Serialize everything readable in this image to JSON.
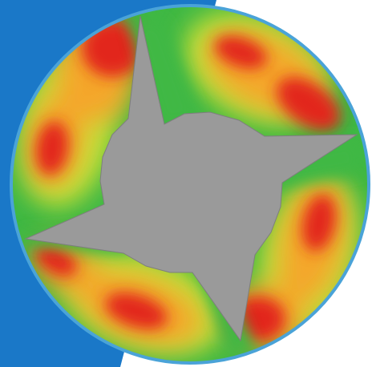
{
  "image": {
    "subject": "cfd-contour-plot",
    "colors": {
      "background_panel": "#1a78c8",
      "background_panel_edge": "#3a94dc",
      "page_background": "#ffffff",
      "solid_region": "#9a9a9a",
      "solid_region_edge": "#7e7e7e",
      "outer_rim": "#4aa3d8",
      "contour_low": "#3fb844",
      "contour_mid": "#c8e23a",
      "contour_high_mid": "#f4a62a",
      "contour_high": "#e2271e"
    }
  }
}
